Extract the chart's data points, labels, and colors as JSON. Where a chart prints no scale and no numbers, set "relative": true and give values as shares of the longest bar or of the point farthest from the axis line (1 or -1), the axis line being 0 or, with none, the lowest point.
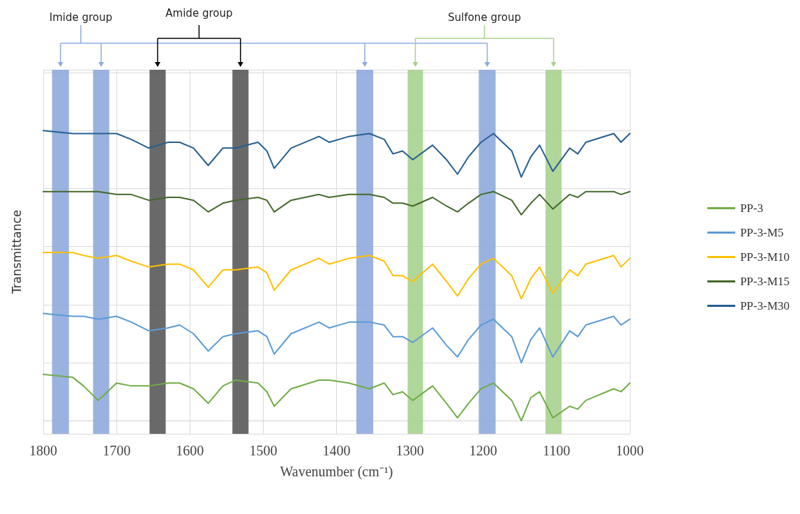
{
  "chart_data": {
    "type": "line",
    "relative": true,
    "xlabel": "Wavenumber (cm⁻¹)",
    "ylabel": "Transmittance",
    "annotations": [
      "Imide group",
      "Amide group",
      "Sulfone group"
    ],
    "xlim": [
      1800,
      1000
    ],
    "xticks": [
      1800,
      1700,
      1600,
      1500,
      1400,
      1300,
      1200,
      1100,
      1000
    ],
    "grid": true,
    "legend": "right",
    "marker": "none",
    "line_style": "solid",
    "x": [
      1800,
      1760,
      1745,
      1725,
      1700,
      1680,
      1656,
      1630,
      1614,
      1595,
      1575,
      1555,
      1538,
      1507,
      1495,
      1485,
      1462,
      1424,
      1410,
      1383,
      1355,
      1335,
      1323,
      1310,
      1296,
      1269,
      1250,
      1235,
      1220,
      1203,
      1186,
      1161,
      1148,
      1135,
      1123,
      1105,
      1082,
      1071,
      1060,
      1022,
      1012,
      1000
    ],
    "series": [
      {
        "name": "PP-3",
        "color": "#70ad47",
        "values": [
          0.16,
          0.15,
          0.12,
          0.07,
          0.13,
          0.12,
          0.12,
          0.13,
          0.13,
          0.11,
          0.06,
          0.12,
          0.14,
          0.13,
          0.1,
          0.05,
          0.11,
          0.14,
          0.14,
          0.13,
          0.11,
          0.13,
          0.09,
          0.1,
          0.07,
          0.12,
          0.06,
          0.01,
          0.06,
          0.11,
          0.13,
          0.07,
          0.0,
          0.08,
          0.1,
          0.01,
          0.05,
          0.04,
          0.07,
          0.11,
          0.1,
          0.13
        ]
      },
      {
        "name": "PP-3-M5",
        "color": "#5b9bd5",
        "values": [
          0.37,
          0.36,
          0.36,
          0.35,
          0.36,
          0.34,
          0.31,
          0.32,
          0.33,
          0.3,
          0.24,
          0.29,
          0.3,
          0.31,
          0.29,
          0.23,
          0.3,
          0.34,
          0.32,
          0.34,
          0.34,
          0.33,
          0.29,
          0.29,
          0.27,
          0.32,
          0.26,
          0.22,
          0.28,
          0.33,
          0.35,
          0.29,
          0.2,
          0.28,
          0.32,
          0.22,
          0.31,
          0.29,
          0.33,
          0.36,
          0.33,
          0.35
        ]
      },
      {
        "name": "PP-3-M10",
        "color": "#ffc000",
        "values": [
          0.58,
          0.58,
          0.57,
          0.56,
          0.57,
          0.55,
          0.53,
          0.54,
          0.54,
          0.52,
          0.46,
          0.52,
          0.52,
          0.53,
          0.51,
          0.45,
          0.52,
          0.56,
          0.54,
          0.56,
          0.57,
          0.55,
          0.5,
          0.5,
          0.48,
          0.54,
          0.48,
          0.43,
          0.49,
          0.54,
          0.56,
          0.5,
          0.42,
          0.49,
          0.53,
          0.44,
          0.52,
          0.5,
          0.54,
          0.57,
          0.53,
          0.56
        ]
      },
      {
        "name": "PP-3-M15",
        "color": "#43682b",
        "values": [
          0.79,
          0.79,
          0.79,
          0.79,
          0.78,
          0.78,
          0.76,
          0.77,
          0.77,
          0.76,
          0.72,
          0.75,
          0.76,
          0.77,
          0.76,
          0.72,
          0.76,
          0.78,
          0.77,
          0.78,
          0.78,
          0.77,
          0.75,
          0.75,
          0.74,
          0.77,
          0.74,
          0.72,
          0.75,
          0.78,
          0.79,
          0.76,
          0.71,
          0.75,
          0.78,
          0.73,
          0.78,
          0.77,
          0.79,
          0.79,
          0.78,
          0.79
        ]
      },
      {
        "name": "PP-3-M30",
        "color": "#255e91",
        "values": [
          1.0,
          0.99,
          0.99,
          0.99,
          0.99,
          0.97,
          0.94,
          0.96,
          0.96,
          0.94,
          0.88,
          0.94,
          0.94,
          0.96,
          0.93,
          0.87,
          0.94,
          0.98,
          0.96,
          0.98,
          0.99,
          0.97,
          0.92,
          0.93,
          0.9,
          0.95,
          0.9,
          0.85,
          0.91,
          0.96,
          0.99,
          0.93,
          0.84,
          0.91,
          0.95,
          0.86,
          0.94,
          0.92,
          0.96,
          0.99,
          0.96,
          0.99
        ]
      }
    ],
    "bands": [
      {
        "axis": "x",
        "from": 1788,
        "to": 1765,
        "color": "#8faadc"
      },
      {
        "axis": "x",
        "from": 1732,
        "to": 1710,
        "color": "#8faadc"
      },
      {
        "axis": "x",
        "from": 1655,
        "to": 1633,
        "color": "#595959"
      },
      {
        "axis": "x",
        "from": 1542,
        "to": 1520,
        "color": "#595959"
      },
      {
        "axis": "x",
        "from": 1373,
        "to": 1350,
        "color": "#8faadc"
      },
      {
        "axis": "x",
        "from": 1303,
        "to": 1282,
        "color": "#a9d18e"
      },
      {
        "axis": "x",
        "from": 1206,
        "to": 1183,
        "color": "#8faadc"
      },
      {
        "axis": "x",
        "from": 1115,
        "to": 1093,
        "color": "#a9d18e"
      }
    ]
  }
}
